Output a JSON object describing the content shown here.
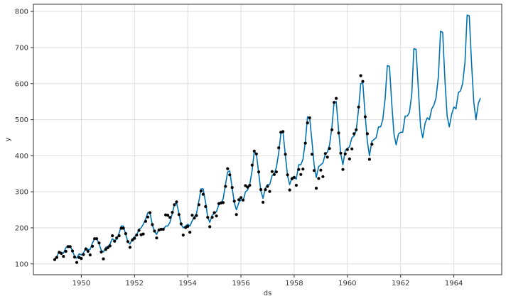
{
  "chart_data": {
    "type": "line",
    "title": "",
    "xlabel": "ds",
    "ylabel": "y",
    "xlim": [
      1948.2,
      1965.8
    ],
    "ylim": [
      70,
      820
    ],
    "xticks": [
      1950,
      1952,
      1954,
      1956,
      1958,
      1960,
      1962,
      1964
    ],
    "yticks": [
      100,
      200,
      300,
      400,
      500,
      600,
      700,
      800
    ],
    "grid": true,
    "colors": {
      "forecast": "#0072b2",
      "observed": "#000000"
    },
    "series": [
      {
        "kind": "line",
        "x": [
          1949.0,
          1949.08,
          1949.17,
          1949.25,
          1949.33,
          1949.42,
          1949.5,
          1949.58,
          1949.67,
          1949.75,
          1949.83,
          1949.92,
          1950.0,
          1950.08,
          1950.17,
          1950.25,
          1950.33,
          1950.42,
          1950.5,
          1950.58,
          1950.67,
          1950.75,
          1950.83,
          1950.92,
          1951.0,
          1951.08,
          1951.17,
          1951.25,
          1951.33,
          1951.42,
          1951.5,
          1951.58,
          1951.67,
          1951.75,
          1951.83,
          1951.92,
          1952.0,
          1952.08,
          1952.17,
          1952.25,
          1952.33,
          1952.42,
          1952.5,
          1952.58,
          1952.67,
          1952.75,
          1952.83,
          1952.92,
          1953.0,
          1953.08,
          1953.17,
          1953.25,
          1953.33,
          1953.42,
          1953.5,
          1953.58,
          1953.67,
          1953.75,
          1953.83,
          1953.92,
          1954.0,
          1954.08,
          1954.17,
          1954.25,
          1954.33,
          1954.42,
          1954.5,
          1954.58,
          1954.67,
          1954.75,
          1954.83,
          1954.92,
          1955.0,
          1955.08,
          1955.17,
          1955.25,
          1955.33,
          1955.42,
          1955.5,
          1955.58,
          1955.67,
          1955.75,
          1955.83,
          1955.92,
          1956.0,
          1956.08,
          1956.17,
          1956.25,
          1956.33,
          1956.42,
          1956.5,
          1956.58,
          1956.67,
          1956.75,
          1956.83,
          1956.92,
          1957.0,
          1957.08,
          1957.17,
          1957.25,
          1957.33,
          1957.42,
          1957.5,
          1957.58,
          1957.67,
          1957.75,
          1957.83,
          1957.92,
          1958.0,
          1958.08,
          1958.17,
          1958.25,
          1958.33,
          1958.42,
          1958.5,
          1958.58,
          1958.67,
          1958.75,
          1958.83,
          1958.92,
          1959.0,
          1959.08,
          1959.17,
          1959.25,
          1959.33,
          1959.42,
          1959.5,
          1959.58,
          1959.67,
          1959.75,
          1959.83,
          1959.92,
          1960.0,
          1960.08,
          1960.17,
          1960.25,
          1960.33,
          1960.42,
          1960.5,
          1960.58,
          1960.67,
          1960.75,
          1960.83,
          1960.92,
          1961.0,
          1961.08,
          1961.17,
          1961.25,
          1961.33,
          1961.42,
          1961.5,
          1961.58,
          1961.67,
          1961.75,
          1961.83,
          1961.92,
          1962.0,
          1962.08,
          1962.17,
          1962.25,
          1962.33,
          1962.42,
          1962.5,
          1962.58,
          1962.67,
          1962.75,
          1962.83,
          1962.92,
          1963.0,
          1963.08,
          1963.17,
          1963.25,
          1963.33,
          1963.42,
          1963.5,
          1963.58,
          1963.67,
          1963.75,
          1963.83,
          1963.92,
          1964.0,
          1964.08,
          1964.17,
          1964.25,
          1964.33,
          1964.42,
          1964.5,
          1964.58,
          1964.67,
          1964.75,
          1964.83,
          1964.92,
          1965.0
        ],
        "y": [
          115,
          120,
          135,
          132,
          130,
          145,
          150,
          150,
          136,
          121,
          116,
          128,
          125,
          130,
          145,
          140,
          140,
          158,
          170,
          170,
          155,
          138,
          133,
          146,
          148,
          155,
          170,
          165,
          168,
          185,
          205,
          205,
          182,
          162,
          155,
          170,
          175,
          180,
          196,
          200,
          210,
          225,
          242,
          242,
          208,
          190,
          182,
          197,
          197,
          195,
          205,
          205,
          215,
          240,
          265,
          270,
          240,
          210,
          200,
          205,
          210,
          205,
          220,
          230,
          240,
          275,
          308,
          308,
          270,
          230,
          215,
          235,
          240,
          245,
          265,
          270,
          280,
          320,
          355,
          358,
          310,
          270,
          250,
          270,
          278,
          275,
          300,
          305,
          320,
          360,
          412,
          405,
          350,
          302,
          282,
          310,
          320,
          320,
          345,
          350,
          368,
          408,
          462,
          465,
          400,
          345,
          320,
          340,
          340,
          335,
          375,
          375,
          390,
          440,
          508,
          505,
          440,
          375,
          340,
          370,
          375,
          380,
          405,
          410,
          430,
          480,
          548,
          550,
          470,
          405,
          375,
          415,
          420,
          425,
          450,
          455,
          470,
          530,
          600,
          602,
          510,
          440,
          400,
          440,
          445,
          450,
          480,
          480,
          500,
          560,
          650,
          648,
          540,
          460,
          430,
          460,
          465,
          465,
          510,
          510,
          520,
          570,
          697,
          695,
          580,
          480,
          450,
          490,
          505,
          500,
          530,
          540,
          560,
          620,
          745,
          742,
          605,
          510,
          480,
          515,
          535,
          530,
          575,
          580,
          600,
          660,
          790,
          788,
          650,
          548,
          500,
          545,
          560
        ]
      },
      {
        "kind": "scatter",
        "x": [
          1949.0,
          1949.08,
          1949.17,
          1949.25,
          1949.33,
          1949.42,
          1949.5,
          1949.58,
          1949.67,
          1949.75,
          1949.83,
          1949.92,
          1950.0,
          1950.08,
          1950.17,
          1950.25,
          1950.33,
          1950.42,
          1950.5,
          1950.58,
          1950.67,
          1950.75,
          1950.83,
          1950.92,
          1951.0,
          1951.08,
          1951.17,
          1951.25,
          1951.33,
          1951.42,
          1951.5,
          1951.58,
          1951.67,
          1951.75,
          1951.83,
          1951.92,
          1952.0,
          1952.08,
          1952.17,
          1952.25,
          1952.33,
          1952.42,
          1952.5,
          1952.58,
          1952.67,
          1952.75,
          1952.83,
          1952.92,
          1953.0,
          1953.08,
          1953.17,
          1953.25,
          1953.33,
          1953.42,
          1953.5,
          1953.58,
          1953.67,
          1953.75,
          1953.83,
          1953.92,
          1954.0,
          1954.08,
          1954.17,
          1954.25,
          1954.33,
          1954.42,
          1954.5,
          1954.58,
          1954.67,
          1954.75,
          1954.83,
          1954.92,
          1955.0,
          1955.08,
          1955.17,
          1955.25,
          1955.33,
          1955.42,
          1955.5,
          1955.58,
          1955.67,
          1955.75,
          1955.83,
          1955.92,
          1956.0,
          1956.08,
          1956.17,
          1956.25,
          1956.33,
          1956.42,
          1956.5,
          1956.58,
          1956.67,
          1956.75,
          1956.83,
          1956.92,
          1957.0,
          1957.08,
          1957.17,
          1957.25,
          1957.33,
          1957.42,
          1957.5,
          1957.58,
          1957.67,
          1957.75,
          1957.83,
          1957.92,
          1958.0,
          1958.08,
          1958.17,
          1958.25,
          1958.33,
          1958.42,
          1958.5,
          1958.58,
          1958.67,
          1958.75,
          1958.83,
          1958.92,
          1959.0,
          1959.08,
          1959.17,
          1959.25,
          1959.33,
          1959.42,
          1959.5,
          1959.58,
          1959.67,
          1959.75,
          1959.83,
          1959.92,
          1960.0,
          1960.08,
          1960.17,
          1960.25,
          1960.33,
          1960.42,
          1960.5,
          1960.58,
          1960.67,
          1960.75,
          1960.83,
          1960.92
        ],
        "y": [
          112,
          118,
          132,
          129,
          121,
          135,
          148,
          148,
          136,
          119,
          104,
          118,
          115,
          126,
          141,
          135,
          125,
          149,
          170,
          170,
          158,
          133,
          114,
          140,
          145,
          150,
          178,
          163,
          172,
          178,
          199,
          199,
          184,
          162,
          146,
          166,
          171,
          180,
          193,
          181,
          183,
          218,
          230,
          242,
          209,
          191,
          172,
          194,
          196,
          196,
          236,
          235,
          229,
          243,
          264,
          272,
          237,
          211,
          180,
          201,
          204,
          188,
          235,
          227,
          234,
          264,
          302,
          293,
          259,
          229,
          203,
          229,
          242,
          233,
          267,
          269,
          270,
          315,
          364,
          347,
          312,
          274,
          237,
          278,
          284,
          277,
          317,
          313,
          318,
          374,
          413,
          405,
          355,
          306,
          271,
          306,
          315,
          301,
          356,
          348,
          355,
          422,
          465,
          467,
          404,
          347,
          305,
          336,
          340,
          318,
          362,
          348,
          363,
          435,
          491,
          505,
          404,
          359,
          310,
          337,
          360,
          342,
          406,
          396,
          420,
          472,
          548,
          559,
          463,
          407,
          362,
          405,
          417,
          391,
          419,
          461,
          472,
          535,
          622,
          606,
          508,
          461,
          390,
          432
        ]
      }
    ]
  }
}
